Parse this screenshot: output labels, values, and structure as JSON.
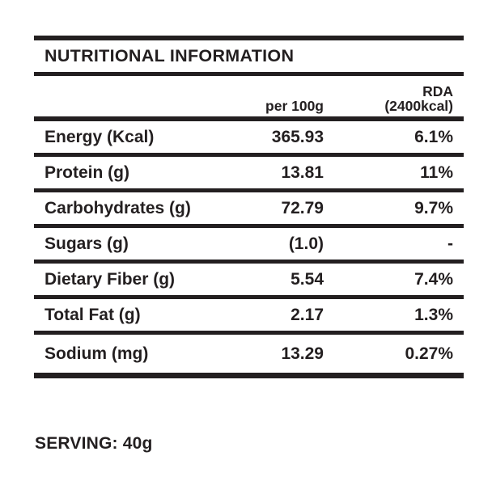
{
  "page": {
    "background_color": "#ffffff",
    "text_color": "#231f20",
    "rule_color": "#231f20"
  },
  "chart_data": {
    "type": "table",
    "title": "NUTRITIONAL INFORMATION",
    "columns": [
      "",
      "per 100g",
      "RDA (2400kcal)"
    ],
    "rows": [
      [
        "Energy (Kcal)",
        "365.93",
        "6.1%"
      ],
      [
        "Protein (g)",
        "13.81",
        "11%"
      ],
      [
        "Carbohydrates (g)",
        "72.79",
        "9.7%"
      ],
      [
        "Sugars (g)",
        "(1.0)",
        "-"
      ],
      [
        "Dietary Fiber (g)",
        "5.54",
        "7.4%"
      ],
      [
        "Total Fat (g)",
        "2.17",
        "1.3%"
      ],
      [
        "Sodium (mg)",
        "13.29",
        "0.27%"
      ]
    ]
  },
  "header": {
    "per100g": "per 100g",
    "rda_line1": "RDA",
    "rda_line2": "(2400kcal)"
  },
  "serving_label": "SERVING: 40g"
}
